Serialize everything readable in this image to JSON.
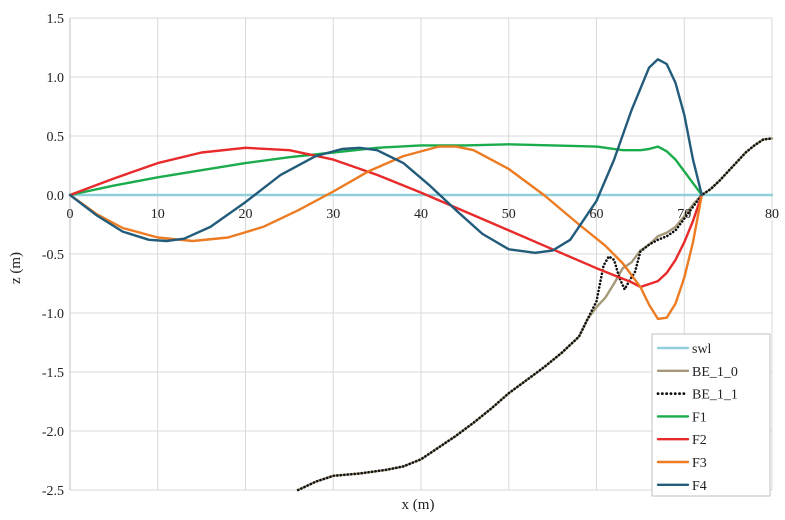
{
  "chart_data": {
    "type": "line",
    "title": "",
    "xlabel": "x (m)",
    "ylabel": "z (m)",
    "xlim": [
      0,
      80
    ],
    "ylim": [
      -2.5,
      1.5
    ],
    "xticks": [
      "0",
      "10",
      "20",
      "30",
      "40",
      "50",
      "60",
      "70",
      "80"
    ],
    "yticks": [
      "1.5",
      "1.0",
      "0.5",
      "0.0",
      "-0.5",
      "-1.0",
      "-1.5",
      "-2.0",
      "-2.5"
    ],
    "grid": true,
    "legend_position": "bottom-right",
    "series": [
      {
        "name": "swl",
        "color": "#8fd0dc",
        "dash": "solid",
        "x": [
          0,
          80
        ],
        "y": [
          0,
          0
        ]
      },
      {
        "name": "BE_1_0",
        "color": "#a49a7a",
        "dash": "solid",
        "x": [
          26,
          28,
          30,
          33,
          36,
          38,
          40,
          42,
          44,
          46,
          48,
          50,
          52,
          54,
          56,
          58,
          59,
          60,
          61,
          62,
          63,
          64,
          65,
          66,
          67,
          68,
          69,
          70,
          71,
          72,
          73,
          74,
          75,
          76,
          77,
          78,
          79,
          80
        ],
        "y": [
          -2.5,
          -2.43,
          -2.38,
          -2.36,
          -2.33,
          -2.3,
          -2.24,
          -2.14,
          -2.04,
          -1.93,
          -1.81,
          -1.68,
          -1.57,
          -1.46,
          -1.34,
          -1.2,
          -1.05,
          -0.95,
          -0.87,
          -0.75,
          -0.62,
          -0.57,
          -0.47,
          -0.42,
          -0.35,
          -0.32,
          -0.27,
          -0.18,
          -0.08,
          0.0,
          0.05,
          0.12,
          0.2,
          0.28,
          0.36,
          0.42,
          0.47,
          0.48
        ]
      },
      {
        "name": "BE_1_1",
        "color": "#111111",
        "dash": "dot",
        "x": [
          26,
          28,
          30,
          33,
          36,
          38,
          40,
          42,
          44,
          46,
          48,
          50,
          52,
          54,
          56,
          58,
          59,
          60,
          60.8,
          61.4,
          62,
          62.6,
          63.2,
          63.8,
          64.4,
          65,
          66,
          67,
          68,
          69,
          70,
          71,
          72,
          73,
          74,
          75,
          76,
          77,
          78,
          79,
          80
        ],
        "y": [
          -2.5,
          -2.43,
          -2.38,
          -2.36,
          -2.33,
          -2.3,
          -2.24,
          -2.14,
          -2.04,
          -1.93,
          -1.81,
          -1.68,
          -1.57,
          -1.46,
          -1.34,
          -1.2,
          -1.05,
          -0.9,
          -0.6,
          -0.52,
          -0.55,
          -0.7,
          -0.8,
          -0.72,
          -0.65,
          -0.48,
          -0.42,
          -0.38,
          -0.35,
          -0.3,
          -0.2,
          -0.1,
          0.0,
          0.05,
          0.12,
          0.2,
          0.28,
          0.36,
          0.42,
          0.47,
          0.48
        ]
      },
      {
        "name": "F1",
        "color": "#1aac4c",
        "dash": "solid",
        "x": [
          0,
          5,
          10,
          15,
          20,
          25,
          30,
          35,
          40,
          45,
          50,
          55,
          60,
          63,
          65,
          66,
          67,
          68,
          69,
          70,
          71,
          72
        ],
        "y": [
          0,
          0.08,
          0.15,
          0.21,
          0.27,
          0.32,
          0.36,
          0.4,
          0.42,
          0.42,
          0.43,
          0.42,
          0.41,
          0.38,
          0.38,
          0.39,
          0.41,
          0.37,
          0.3,
          0.2,
          0.1,
          0.0
        ]
      },
      {
        "name": "F2",
        "color": "#e82a2a",
        "dash": "solid",
        "x": [
          0,
          5,
          10,
          15,
          20,
          25,
          30,
          35,
          40,
          45,
          50,
          55,
          60,
          64,
          65,
          67,
          68,
          69,
          70,
          71,
          72
        ],
        "y": [
          0,
          0.14,
          0.27,
          0.36,
          0.4,
          0.38,
          0.3,
          0.17,
          0.02,
          -0.14,
          -0.3,
          -0.46,
          -0.62,
          -0.74,
          -0.78,
          -0.73,
          -0.66,
          -0.55,
          -0.4,
          -0.22,
          0.0
        ]
      },
      {
        "name": "F3",
        "color": "#ec7b22",
        "dash": "solid",
        "x": [
          0,
          3,
          6,
          10,
          14,
          18,
          22,
          26,
          30,
          34,
          38,
          42,
          44,
          46,
          50,
          54,
          58,
          61,
          63,
          65,
          66,
          67,
          68,
          69,
          70,
          71,
          72
        ],
        "y": [
          0,
          -0.16,
          -0.28,
          -0.36,
          -0.39,
          -0.36,
          -0.27,
          -0.13,
          0.03,
          0.2,
          0.33,
          0.41,
          0.41,
          0.38,
          0.22,
          0.0,
          -0.25,
          -0.43,
          -0.58,
          -0.78,
          -0.93,
          -1.05,
          -1.04,
          -0.92,
          -0.7,
          -0.4,
          0.0
        ]
      },
      {
        "name": "F4",
        "color": "#225c7a",
        "dash": "solid",
        "x": [
          0,
          3,
          6,
          9,
          11,
          13,
          16,
          20,
          24,
          28,
          31,
          33,
          35,
          38,
          41,
          44,
          47,
          50,
          53,
          55,
          57,
          60,
          62,
          64,
          66,
          67,
          68,
          69,
          70,
          71,
          72
        ],
        "y": [
          0,
          -0.17,
          -0.31,
          -0.38,
          -0.39,
          -0.37,
          -0.27,
          -0.06,
          0.17,
          0.33,
          0.39,
          0.4,
          0.38,
          0.27,
          0.08,
          -0.13,
          -0.33,
          -0.46,
          -0.49,
          -0.47,
          -0.38,
          -0.05,
          0.3,
          0.72,
          1.08,
          1.15,
          1.11,
          0.95,
          0.68,
          0.3,
          0.0
        ]
      }
    ]
  }
}
